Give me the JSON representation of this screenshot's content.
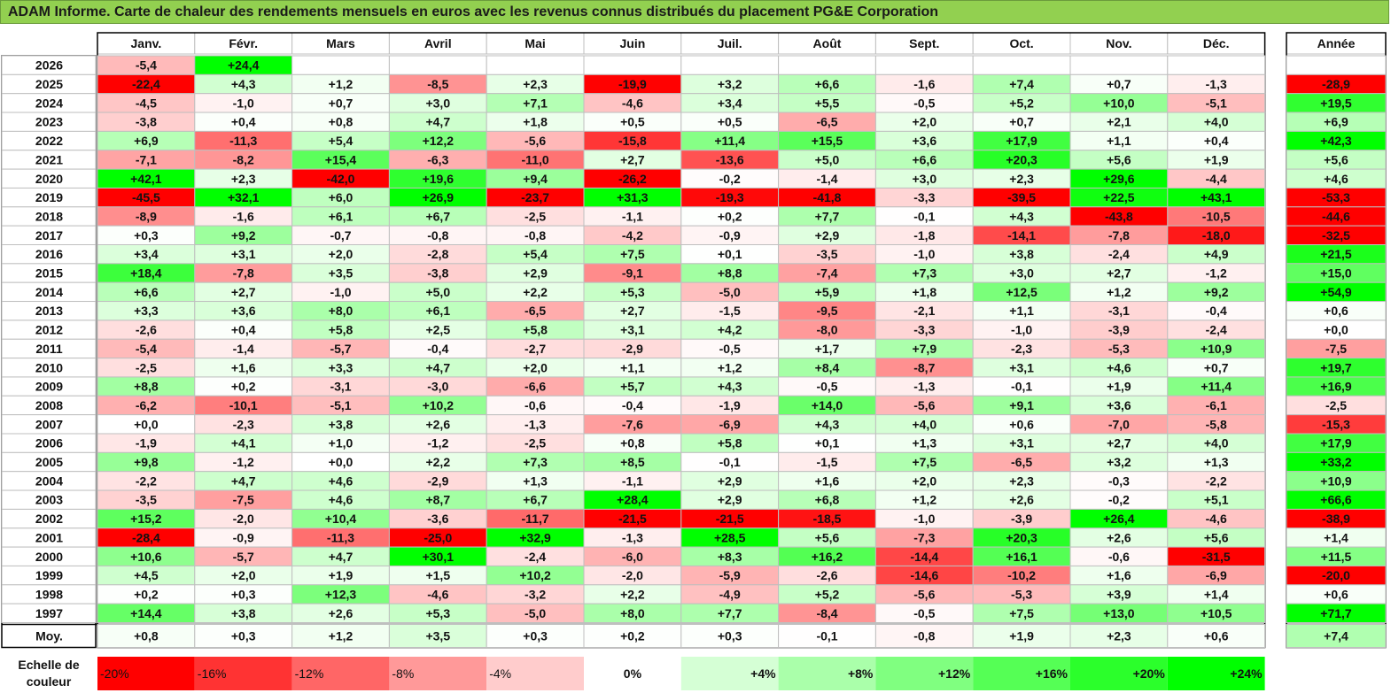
{
  "title": "ADAM Informe. Carte de chaleur des rendements mensuels en euros avec les revenus connus distribués du placement PG&E Corporation",
  "chart_data": {
    "type": "heatmap",
    "title": "ADAM Informe. Carte de chaleur des rendements mensuels en euros avec les revenus connus distribués du placement PG&E Corporation",
    "months": [
      "Janv.",
      "Févr.",
      "Mars",
      "Avril",
      "Mai",
      "Juin",
      "Juil.",
      "Août",
      "Sept.",
      "Oct.",
      "Nov.",
      "Déc."
    ],
    "year_header": "Année",
    "rows": [
      {
        "year": "2026",
        "values": [
          "-5,4",
          "+24,4",
          "",
          "",
          "",
          "",
          "",
          "",
          "",
          "",
          "",
          ""
        ],
        "annual": ""
      },
      {
        "year": "2025",
        "values": [
          "-22,4",
          "+4,3",
          "+1,2",
          "-8,5",
          "+2,3",
          "-19,9",
          "+3,2",
          "+6,6",
          "-1,6",
          "+7,4",
          "+0,7",
          "-1,3"
        ],
        "annual": "-28,9"
      },
      {
        "year": "2024",
        "values": [
          "-4,5",
          "-1,0",
          "+0,7",
          "+3,0",
          "+7,1",
          "-4,6",
          "+3,4",
          "+5,5",
          "-0,5",
          "+5,2",
          "+10,0",
          "-5,1"
        ],
        "annual": "+19,5"
      },
      {
        "year": "2023",
        "values": [
          "-3,8",
          "+0,4",
          "+0,8",
          "+4,7",
          "+1,8",
          "+0,5",
          "+0,5",
          "-6,5",
          "+2,0",
          "+0,7",
          "+2,1",
          "+4,0"
        ],
        "annual": "+6,9"
      },
      {
        "year": "2022",
        "values": [
          "+6,9",
          "-11,3",
          "+5,4",
          "+12,2",
          "-5,6",
          "-15,8",
          "+11,4",
          "+15,5",
          "+3,6",
          "+17,9",
          "+1,1",
          "+0,4"
        ],
        "annual": "+42,3"
      },
      {
        "year": "2021",
        "values": [
          "-7,1",
          "-8,2",
          "+15,4",
          "-6,3",
          "-11,0",
          "+2,7",
          "-13,6",
          "+5,0",
          "+6,6",
          "+20,3",
          "+5,6",
          "+1,9"
        ],
        "annual": "+5,6"
      },
      {
        "year": "2020",
        "values": [
          "+42,1",
          "+2,3",
          "-42,0",
          "+19,6",
          "+9,4",
          "-26,2",
          "-0,2",
          "-1,4",
          "+3,0",
          "+2,3",
          "+29,6",
          "-4,4"
        ],
        "annual": "+4,6"
      },
      {
        "year": "2019",
        "values": [
          "-45,5",
          "+32,1",
          "+6,0",
          "+26,9",
          "-23,7",
          "+31,3",
          "-19,3",
          "-41,8",
          "-3,3",
          "-39,5",
          "+22,5",
          "+43,1"
        ],
        "annual": "-53,3"
      },
      {
        "year": "2018",
        "values": [
          "-8,9",
          "-1,6",
          "+6,1",
          "+6,7",
          "-2,5",
          "-1,1",
          "+0,2",
          "+7,7",
          "-0,1",
          "+4,3",
          "-43,8",
          "-10,5"
        ],
        "annual": "-44,6"
      },
      {
        "year": "2017",
        "values": [
          "+0,3",
          "+9,2",
          "-0,7",
          "-0,8",
          "-0,8",
          "-4,2",
          "-0,9",
          "+2,9",
          "-1,8",
          "-14,1",
          "-7,8",
          "-18,0"
        ],
        "annual": "-32,5"
      },
      {
        "year": "2016",
        "values": [
          "+3,4",
          "+3,1",
          "+2,0",
          "-2,8",
          "+5,4",
          "+7,5",
          "+0,1",
          "-3,5",
          "-1,0",
          "+3,8",
          "-2,4",
          "+4,9"
        ],
        "annual": "+21,5"
      },
      {
        "year": "2015",
        "values": [
          "+18,4",
          "-7,8",
          "+3,5",
          "-3,8",
          "+2,9",
          "-9,1",
          "+8,8",
          "-7,4",
          "+7,3",
          "+3,0",
          "+2,7",
          "-1,2"
        ],
        "annual": "+15,0"
      },
      {
        "year": "2014",
        "values": [
          "+6,6",
          "+2,7",
          "-1,0",
          "+5,0",
          "+2,2",
          "+5,3",
          "-5,0",
          "+5,9",
          "+1,8",
          "+12,5",
          "+1,2",
          "+9,2"
        ],
        "annual": "+54,9"
      },
      {
        "year": "2013",
        "values": [
          "+3,3",
          "+3,6",
          "+8,0",
          "+6,1",
          "-6,5",
          "+2,7",
          "-1,5",
          "-9,5",
          "-2,1",
          "+1,1",
          "-3,1",
          "-0,4"
        ],
        "annual": "+0,6"
      },
      {
        "year": "2012",
        "values": [
          "-2,6",
          "+0,4",
          "+5,8",
          "+2,5",
          "+5,8",
          "+3,1",
          "+4,2",
          "-8,0",
          "-3,3",
          "-1,0",
          "-3,9",
          "-2,4"
        ],
        "annual": "+0,0"
      },
      {
        "year": "2011",
        "values": [
          "-5,4",
          "-1,4",
          "-5,7",
          "-0,4",
          "-2,7",
          "-2,9",
          "-0,5",
          "+1,7",
          "+7,9",
          "-2,3",
          "-5,3",
          "+10,9"
        ],
        "annual": "-7,5"
      },
      {
        "year": "2010",
        "values": [
          "-2,5",
          "+1,6",
          "+3,3",
          "+4,7",
          "+2,0",
          "+1,1",
          "+1,2",
          "+8,4",
          "-8,7",
          "+3,1",
          "+4,6",
          "+0,7"
        ],
        "annual": "+19,7"
      },
      {
        "year": "2009",
        "values": [
          "+8,8",
          "+0,2",
          "-3,1",
          "-3,0",
          "-6,6",
          "+5,7",
          "+4,3",
          "-0,5",
          "-1,3",
          "-0,1",
          "+1,9",
          "+11,4"
        ],
        "annual": "+16,9"
      },
      {
        "year": "2008",
        "values": [
          "-6,2",
          "-10,1",
          "-5,1",
          "+10,2",
          "-0,6",
          "-0,4",
          "-1,9",
          "+14,0",
          "-5,6",
          "+9,1",
          "+3,6",
          "-6,1"
        ],
        "annual": "-2,5"
      },
      {
        "year": "2007",
        "values": [
          "+0,0",
          "-2,3",
          "+3,8",
          "+2,6",
          "-1,3",
          "-7,6",
          "-6,9",
          "+4,3",
          "+4,0",
          "+0,6",
          "-7,0",
          "-5,8"
        ],
        "annual": "-15,3"
      },
      {
        "year": "2006",
        "values": [
          "-1,9",
          "+4,1",
          "+1,0",
          "-1,2",
          "-2,5",
          "+0,8",
          "+5,8",
          "+0,1",
          "+1,3",
          "+3,1",
          "+2,7",
          "+4,0"
        ],
        "annual": "+17,9"
      },
      {
        "year": "2005",
        "values": [
          "+9,8",
          "-1,2",
          "+0,0",
          "+2,2",
          "+7,3",
          "+8,5",
          "-0,1",
          "-1,5",
          "+7,5",
          "-6,5",
          "+3,2",
          "+1,3"
        ],
        "annual": "+33,2"
      },
      {
        "year": "2004",
        "values": [
          "-2,2",
          "+4,7",
          "+4,6",
          "-2,9",
          "+1,3",
          "-1,1",
          "+2,9",
          "+1,6",
          "+2,0",
          "+2,3",
          "-0,3",
          "-2,2"
        ],
        "annual": "+10,9"
      },
      {
        "year": "2003",
        "values": [
          "-3,5",
          "-7,5",
          "+4,6",
          "+8,7",
          "+6,7",
          "+28,4",
          "+2,9",
          "+6,8",
          "+1,2",
          "+2,6",
          "-0,2",
          "+5,1"
        ],
        "annual": "+66,6"
      },
      {
        "year": "2002",
        "values": [
          "+15,2",
          "-2,0",
          "+10,4",
          "-3,6",
          "-11,7",
          "-21,5",
          "-21,5",
          "-18,5",
          "-1,0",
          "-3,9",
          "+26,4",
          "-4,6"
        ],
        "annual": "-38,9"
      },
      {
        "year": "2001",
        "values": [
          "-28,4",
          "-0,9",
          "-11,3",
          "-25,0",
          "+32,9",
          "-1,3",
          "+28,5",
          "+5,6",
          "-7,3",
          "+20,3",
          "+2,6",
          "+5,6"
        ],
        "annual": "+1,4"
      },
      {
        "year": "2000",
        "values": [
          "+10,6",
          "-5,7",
          "+4,7",
          "+30,1",
          "-2,4",
          "-6,0",
          "+8,3",
          "+16,2",
          "-14,4",
          "+16,1",
          "-0,6",
          "-31,5"
        ],
        "annual": "+11,5"
      },
      {
        "year": "1999",
        "values": [
          "+4,5",
          "+2,0",
          "+1,9",
          "+1,5",
          "+10,2",
          "-2,0",
          "-5,9",
          "-2,6",
          "-14,6",
          "-10,2",
          "+1,6",
          "-6,9"
        ],
        "annual": "-20,0"
      },
      {
        "year": "1998",
        "values": [
          "+0,2",
          "+0,3",
          "+12,3",
          "-4,6",
          "-3,2",
          "+2,2",
          "-4,9",
          "+5,2",
          "-5,6",
          "-5,3",
          "+3,9",
          "+1,4"
        ],
        "annual": "+0,6"
      },
      {
        "year": "1997",
        "values": [
          "+14,4",
          "+3,8",
          "+2,6",
          "+5,3",
          "-5,0",
          "+8,0",
          "+7,7",
          "-8,4",
          "-0,5",
          "+7,5",
          "+13,0",
          "+10,5"
        ],
        "annual": "+71,7"
      }
    ],
    "average": {
      "label": "Moy.",
      "values": [
        "+0,8",
        "+0,3",
        "+1,2",
        "+3,5",
        "+0,3",
        "+0,2",
        "+0,3",
        "-0,1",
        "-0,8",
        "+1,9",
        "+2,3",
        "+0,6"
      ],
      "annual": "+7,4"
    },
    "color_scale": {
      "label": "Echelle de couleur",
      "steps": [
        {
          "label": "-20%",
          "value": -20,
          "color": "#ff0000"
        },
        {
          "label": "-16%",
          "value": -16,
          "color": "#ff3333"
        },
        {
          "label": "-12%",
          "value": -12,
          "color": "#ff6666"
        },
        {
          "label": "-8%",
          "value": -8,
          "color": "#ff9999"
        },
        {
          "label": "-4%",
          "value": -4,
          "color": "#ffcccc"
        },
        {
          "label": "0%",
          "value": 0,
          "color": "#ffffff"
        },
        {
          "label": "+4%",
          "value": 4,
          "color": "#d5ffd5"
        },
        {
          "label": "+8%",
          "value": 8,
          "color": "#aaffaa"
        },
        {
          "label": "+12%",
          "value": 12,
          "color": "#80ff80"
        },
        {
          "label": "+16%",
          "value": 16,
          "color": "#55ff55"
        },
        {
          "label": "+20%",
          "value": 20,
          "color": "#2bff2b"
        },
        {
          "label": "+24%",
          "value": 24,
          "color": "#00ff00"
        }
      ]
    }
  }
}
